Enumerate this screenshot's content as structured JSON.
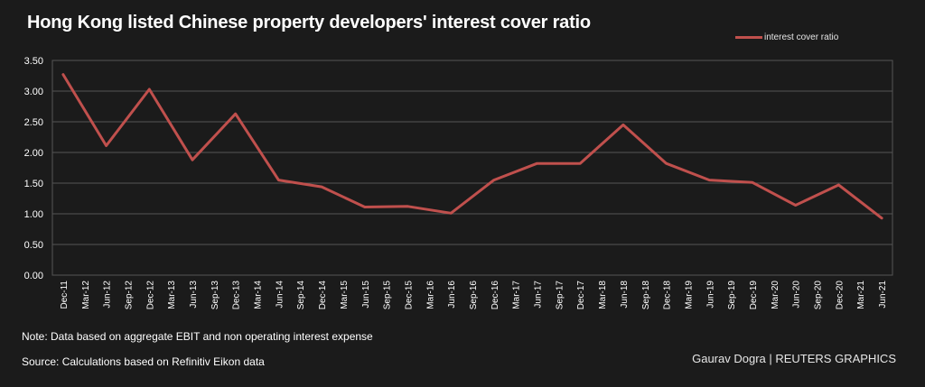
{
  "title": "Hong Kong listed Chinese property developers' interest cover ratio",
  "note": "Note: Data based on aggregate EBIT and non operating interest expense",
  "source": "Source: Calculations based on Refinitiv Eikon data",
  "credit": "Gaurav Dogra | REUTERS GRAPHICS",
  "colors": {
    "background": "#1b1b1b",
    "line": "#c0504d",
    "grid": "#555555"
  },
  "chart_data": {
    "type": "line",
    "title": "Hong Kong listed Chinese property developers' interest cover ratio",
    "xlabel": "",
    "ylabel": "",
    "ylim": [
      0,
      3.5
    ],
    "yticks": [
      "0.00",
      "0.50",
      "1.00",
      "1.50",
      "2.00",
      "2.50",
      "3.00",
      "3.50"
    ],
    "grid": true,
    "legend_position": "top-right",
    "categories": [
      "Dec-11",
      "Mar-12",
      "Jun-12",
      "Sep-12",
      "Dec-12",
      "Mar-13",
      "Jun-13",
      "Sep-13",
      "Dec-13",
      "Mar-14",
      "Jun-14",
      "Sep-14",
      "Dec-14",
      "Mar-15",
      "Jun-15",
      "Sep-15",
      "Dec-15",
      "Mar-16",
      "Jun-16",
      "Sep-16",
      "Dec-16",
      "Mar-17",
      "Jun-17",
      "Sep-17",
      "Dec-17",
      "Mar-18",
      "Jun-18",
      "Sep-18",
      "Dec-18",
      "Mar-19",
      "Jun-19",
      "Sep-19",
      "Dec-19",
      "Mar-20",
      "Jun-20",
      "Sep-20",
      "Dec-20",
      "Mar-21",
      "Jun-21"
    ],
    "series": [
      {
        "name": "interest cover ratio",
        "values": [
          3.27,
          null,
          2.11,
          null,
          3.03,
          null,
          1.88,
          null,
          2.63,
          null,
          1.55,
          null,
          1.44,
          null,
          1.11,
          null,
          1.12,
          null,
          1.01,
          null,
          1.55,
          null,
          1.82,
          null,
          1.82,
          null,
          2.45,
          null,
          1.82,
          null,
          1.55,
          null,
          1.51,
          null,
          1.14,
          null,
          1.47,
          null,
          0.93
        ]
      }
    ]
  }
}
